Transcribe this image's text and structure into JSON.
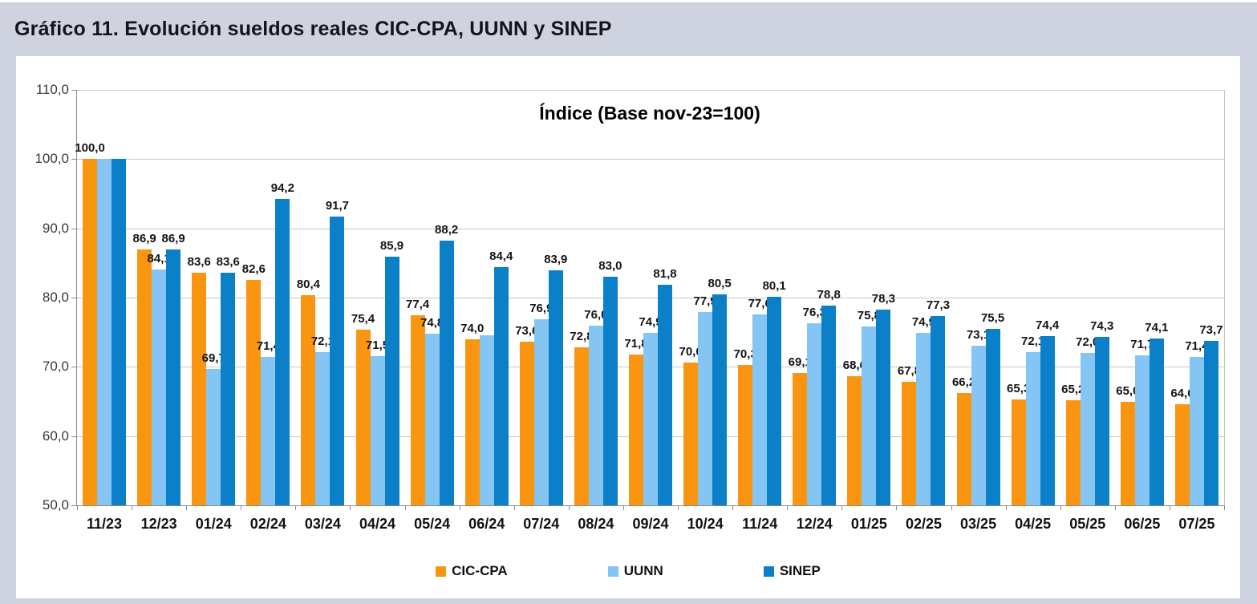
{
  "page": {
    "title": "Gráfico 11. Evolución sueldos reales CIC-CPA, UUNN y SINEP"
  },
  "chart_data": {
    "type": "bar",
    "title": "Índice (Base nov-23=100)",
    "categories": [
      "11/23",
      "12/23",
      "01/24",
      "02/24",
      "03/24",
      "04/24",
      "05/24",
      "06/24",
      "07/24",
      "08/24",
      "09/24",
      "10/24",
      "11/24",
      "12/24",
      "01/25",
      "02/25",
      "03/25",
      "04/25",
      "05/25",
      "06/25",
      "07/25"
    ],
    "series": [
      {
        "name": "CIC-CPA",
        "color": "#F99511",
        "values": [
          100.0,
          86.9,
          83.6,
          82.6,
          80.4,
          75.4,
          77.4,
          74.0,
          73.6,
          72.8,
          71.8,
          70.6,
          70.3,
          69.1,
          68.6,
          67.8,
          66.2,
          65.3,
          65.2,
          65.0,
          64.6
        ]
      },
      {
        "name": "UUNN",
        "color": "#84C5F4",
        "values": [
          100.0,
          84.1,
          69.7,
          71.4,
          72.1,
          71.5,
          74.8,
          74.5,
          76.9,
          76.0,
          74.9,
          77.9,
          77.6,
          76.3,
          75.8,
          74.9,
          73.1,
          72.1,
          72.0,
          71.7,
          71.4
        ]
      },
      {
        "name": "SINEP",
        "color": "#0B80C9",
        "values": [
          100.0,
          86.9,
          83.6,
          94.2,
          91.7,
          85.9,
          88.2,
          84.4,
          83.9,
          83.0,
          81.8,
          80.5,
          80.1,
          78.8,
          78.3,
          77.3,
          75.5,
          74.4,
          74.3,
          74.1,
          73.7
        ]
      }
    ],
    "hidden_value_labels": [
      {
        "series": 1,
        "index": 0
      },
      {
        "series": 2,
        "index": 0
      },
      {
        "series": 1,
        "index": 7
      }
    ],
    "ylim": [
      50,
      110
    ],
    "ytick_step": 10,
    "decimal_separator": ",",
    "grid": true,
    "value_labels": true,
    "legend_position": "bottom",
    "xlabel": "",
    "ylabel": ""
  },
  "colors": {
    "page_background": "#cfd3df",
    "chart_background": "#ffffff",
    "gridline": "#c6c6c6",
    "axis": "#8c8c8c",
    "label_text": "#141414"
  }
}
